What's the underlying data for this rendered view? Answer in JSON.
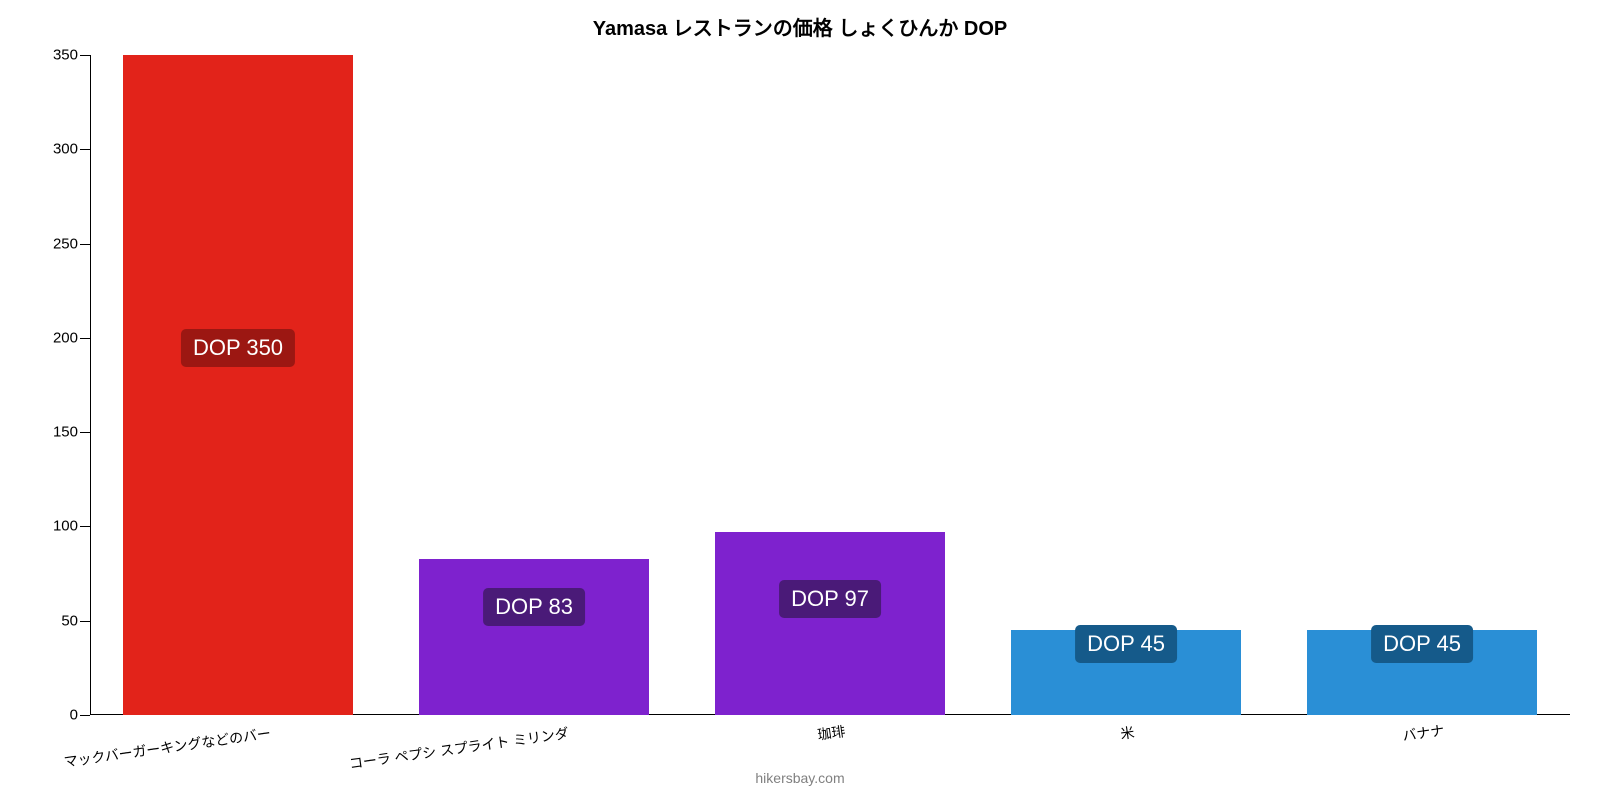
{
  "chart": {
    "type": "bar",
    "title": "Yamasa レストランの価格 しょくひんか DOP",
    "title_fontsize": 20,
    "title_color": "#000000",
    "background_color": "#ffffff",
    "attribution": "hikersbay.com",
    "attribution_color": "#808080",
    "attribution_fontsize": 14,
    "y_axis": {
      "min": 0,
      "max": 350,
      "tick_step": 50,
      "tick_fontsize": 15,
      "tick_color": "#000000"
    },
    "x_axis": {
      "tick_fontsize": 14,
      "tick_color": "#000000",
      "tick_rotation_deg": -8
    },
    "bar_width_ratio": 0.78,
    "value_label_fontsize": 22,
    "bars": [
      {
        "category": "マックバーガーキングなどのバー",
        "value": 350,
        "value_label": "DOP 350",
        "bar_color": "#e2231a",
        "label_bg_color": "#9c1712",
        "label_text_color": "#ffffff",
        "label_y_value": 195
      },
      {
        "category": "コーラ ペプシ スプライト ミリンダ",
        "value": 83,
        "value_label": "DOP 83",
        "bar_color": "#7e22ce",
        "label_bg_color": "#4a1a78",
        "label_text_color": "#ffffff",
        "label_y_value": 58
      },
      {
        "category": "珈琲",
        "value": 97,
        "value_label": "DOP 97",
        "bar_color": "#7e22ce",
        "label_bg_color": "#4a1a78",
        "label_text_color": "#ffffff",
        "label_y_value": 62
      },
      {
        "category": "米",
        "value": 45,
        "value_label": "DOP 45",
        "bar_color": "#2a8fd6",
        "label_bg_color": "#155a8a",
        "label_text_color": "#ffffff",
        "label_y_value": 38
      },
      {
        "category": "バナナ",
        "value": 45,
        "value_label": "DOP 45",
        "bar_color": "#2a8fd6",
        "label_bg_color": "#155a8a",
        "label_text_color": "#ffffff",
        "label_y_value": 38
      }
    ]
  }
}
